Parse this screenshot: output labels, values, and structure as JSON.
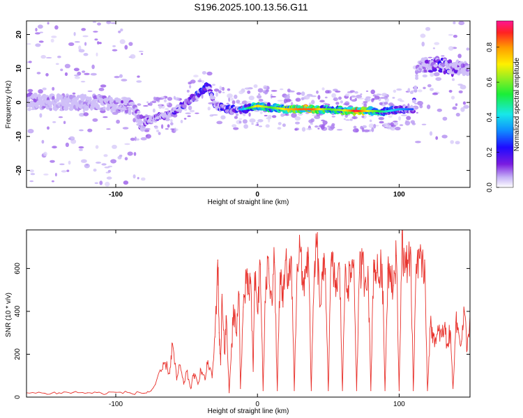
{
  "title": "S196.2025.100.13.56.G11",
  "chart_data": [
    {
      "type": "heatmap",
      "xlabel": "Height of straight line (km)",
      "ylabel": "Frequency (Hz)",
      "xlim": [
        -163,
        150
      ],
      "ylim": [
        -25,
        24
      ],
      "xticks": [
        -100,
        0,
        100
      ],
      "yticks": [
        -20,
        -10,
        0,
        10,
        20
      ],
      "colorbar": {
        "label": "Normalized spectral amplitude",
        "range": [
          0,
          0.95
        ],
        "ticks": [
          0.0,
          0.2,
          0.4,
          0.6,
          0.8
        ]
      },
      "ridge": {
        "x": [
          -163,
          -150,
          -130,
          -110,
          -90,
          -82,
          -75,
          -60,
          -50,
          -40,
          -35,
          -30,
          -20,
          -10,
          0,
          10,
          20,
          30,
          40,
          50,
          60,
          70,
          80,
          90,
          100,
          110,
          113,
          120,
          130,
          140,
          150
        ],
        "frequency": [
          1,
          0,
          0,
          0,
          -1,
          -6,
          -5,
          -3,
          0,
          3,
          5,
          -1,
          -2,
          -2,
          -1,
          -1.5,
          -2,
          -2,
          -2,
          -2,
          -2.3,
          -2.5,
          -2.5,
          -2.7,
          -2,
          -2,
          10,
          11,
          11,
          10,
          10
        ],
        "amplitude": [
          0.1,
          0.1,
          0.08,
          0.1,
          0.12,
          0.15,
          0.15,
          0.2,
          0.25,
          0.35,
          0.3,
          0.2,
          0.3,
          0.3,
          0.7,
          0.5,
          0.7,
          0.8,
          0.8,
          0.5,
          0.6,
          0.9,
          0.6,
          0.4,
          0.3,
          0.2,
          0.1,
          0.15,
          0.25,
          0.15,
          0.1
        ]
      }
    },
    {
      "type": "line",
      "xlabel": "Height of straight line (km)",
      "ylabel": "SNR (10 * v/v)",
      "xlim": [
        -163,
        150
      ],
      "ylim": [
        0,
        780
      ],
      "xticks": [
        -100,
        0,
        100
      ],
      "yticks": [
        0,
        200,
        400,
        600
      ],
      "series": [
        {
          "color": "#e8302a",
          "x": [
            -163,
            -150,
            -140,
            -130,
            -120,
            -110,
            -100,
            -90,
            -80,
            -75,
            -72,
            -68,
            -65,
            -62,
            -60,
            -57,
            -55,
            -52,
            -50,
            -47,
            -45,
            -42,
            -40,
            -37,
            -35,
            -32,
            -30,
            -28,
            -27,
            -26,
            -25,
            -23,
            -22,
            -20,
            -18,
            -17,
            -15,
            -13,
            -12,
            -10,
            -8,
            -6,
            -5,
            -3,
            -2,
            0,
            2,
            4,
            6,
            8,
            10,
            12,
            14,
            16,
            18,
            20,
            22,
            24,
            26,
            28,
            30,
            32,
            34,
            36,
            38,
            40,
            42,
            44,
            46,
            48,
            50,
            52,
            54,
            56,
            58,
            60,
            62,
            64,
            66,
            68,
            70,
            72,
            74,
            76,
            78,
            80,
            82,
            84,
            86,
            88,
            90,
            92,
            94,
            96,
            98,
            100,
            102,
            104,
            106,
            108,
            110,
            112,
            114,
            116,
            118,
            120,
            122,
            124,
            126,
            128,
            130,
            132,
            134,
            136,
            138,
            140,
            142,
            144,
            146,
            148,
            150
          ],
          "values": [
            20,
            18,
            20,
            22,
            20,
            18,
            22,
            20,
            18,
            30,
            60,
            120,
            160,
            110,
            250,
            80,
            150,
            60,
            120,
            40,
            110,
            60,
            130,
            80,
            170,
            90,
            280,
            640,
            300,
            150,
            480,
            200,
            380,
            20,
            250,
            430,
            300,
            480,
            40,
            420,
            530,
            480,
            560,
            120,
            580,
            400,
            620,
            30,
            560,
            600,
            480,
            630,
            30,
            580,
            420,
            640,
            520,
            650,
            30,
            620,
            700,
            500,
            610,
            650,
            30,
            560,
            720,
            420,
            550,
            600,
            30,
            640,
            560,
            510,
            600,
            30,
            620,
            520,
            580,
            640,
            30,
            580,
            620,
            540,
            610,
            30,
            640,
            580,
            560,
            620,
            30,
            600,
            610,
            520,
            660,
            30,
            760,
            580,
            640,
            700,
            30,
            620,
            690,
            560,
            640,
            30,
            330,
            300,
            250,
            310,
            280,
            330,
            240,
            310,
            40,
            350,
            300,
            260,
            400,
            220,
            380
          ]
        }
      ]
    }
  ]
}
